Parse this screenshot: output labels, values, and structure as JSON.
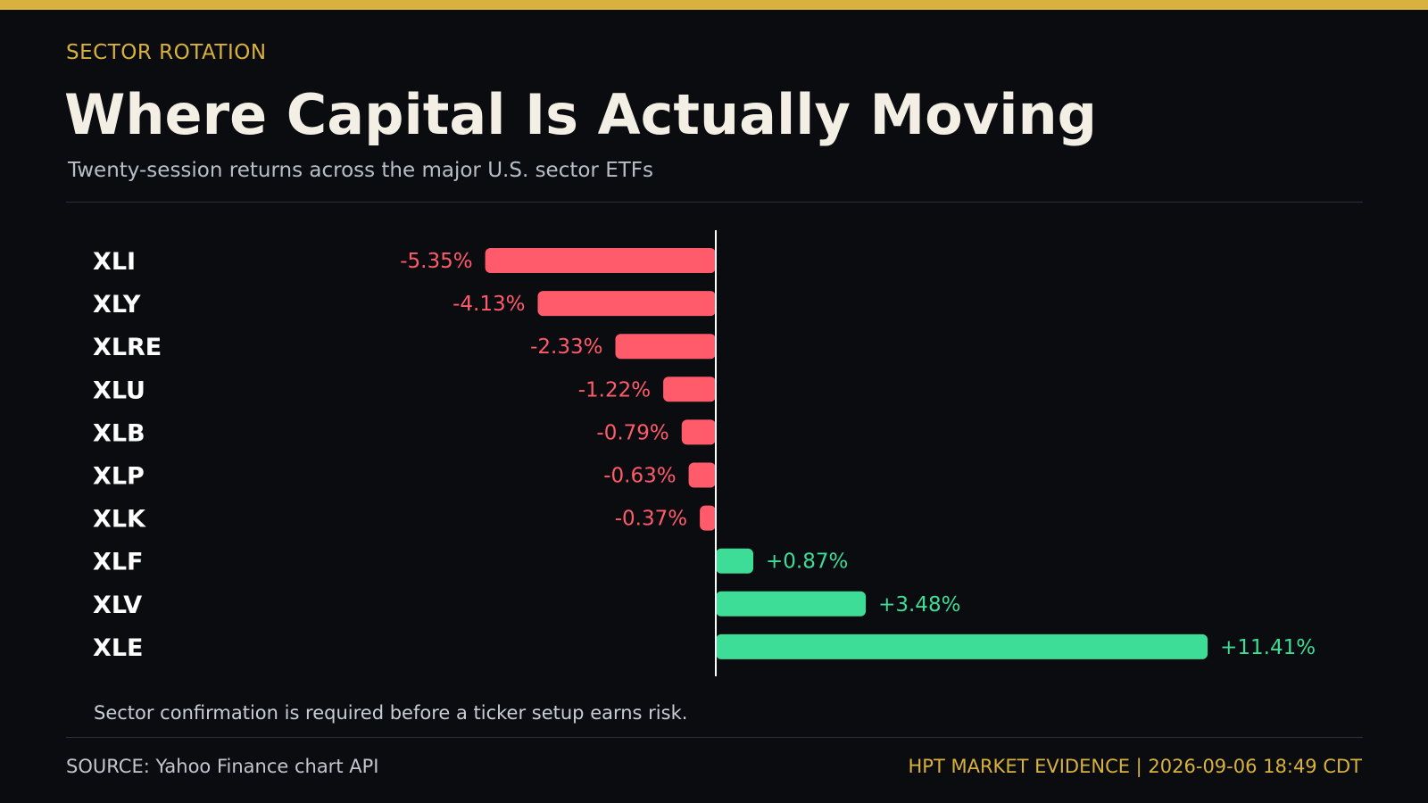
{
  "header": {
    "eyebrow": "SECTOR ROTATION",
    "title": "Where Capital Is Actually Moving",
    "subtitle": "Twenty-session returns across the major U.S. sector ETFs"
  },
  "footer": {
    "note": "Sector confirmation is required before a ticker setup earns risk.",
    "source": "SOURCE: Yahoo Finance chart API",
    "stamp": "HPT MARKET EVIDENCE | 2026-09-06 18:49 CDT"
  },
  "colors": {
    "accent": "#d8b23c",
    "negative": "#ff5b6b",
    "positive": "#3ddc97",
    "background": "#0a0c10",
    "axis": "#ffffff"
  },
  "chart_data": {
    "type": "bar",
    "orientation": "horizontal",
    "title": "",
    "xlabel": "",
    "ylabel": "",
    "grid": false,
    "unit": "%",
    "xlim": [
      -13.5,
      13.5
    ],
    "categories": [
      "XLI",
      "XLY",
      "XLRE",
      "XLU",
      "XLB",
      "XLP",
      "XLK",
      "XLF",
      "XLV",
      "XLE"
    ],
    "values": [
      -5.35,
      -4.13,
      -2.33,
      -1.22,
      -0.79,
      -0.63,
      -0.37,
      0.87,
      3.48,
      11.41
    ],
    "labels": [
      "-5.35%",
      "-4.13%",
      "-2.33%",
      "-1.22%",
      "-0.79%",
      "-0.63%",
      "-0.37%",
      "+0.87%",
      "+3.48%",
      "+11.41%"
    ]
  }
}
